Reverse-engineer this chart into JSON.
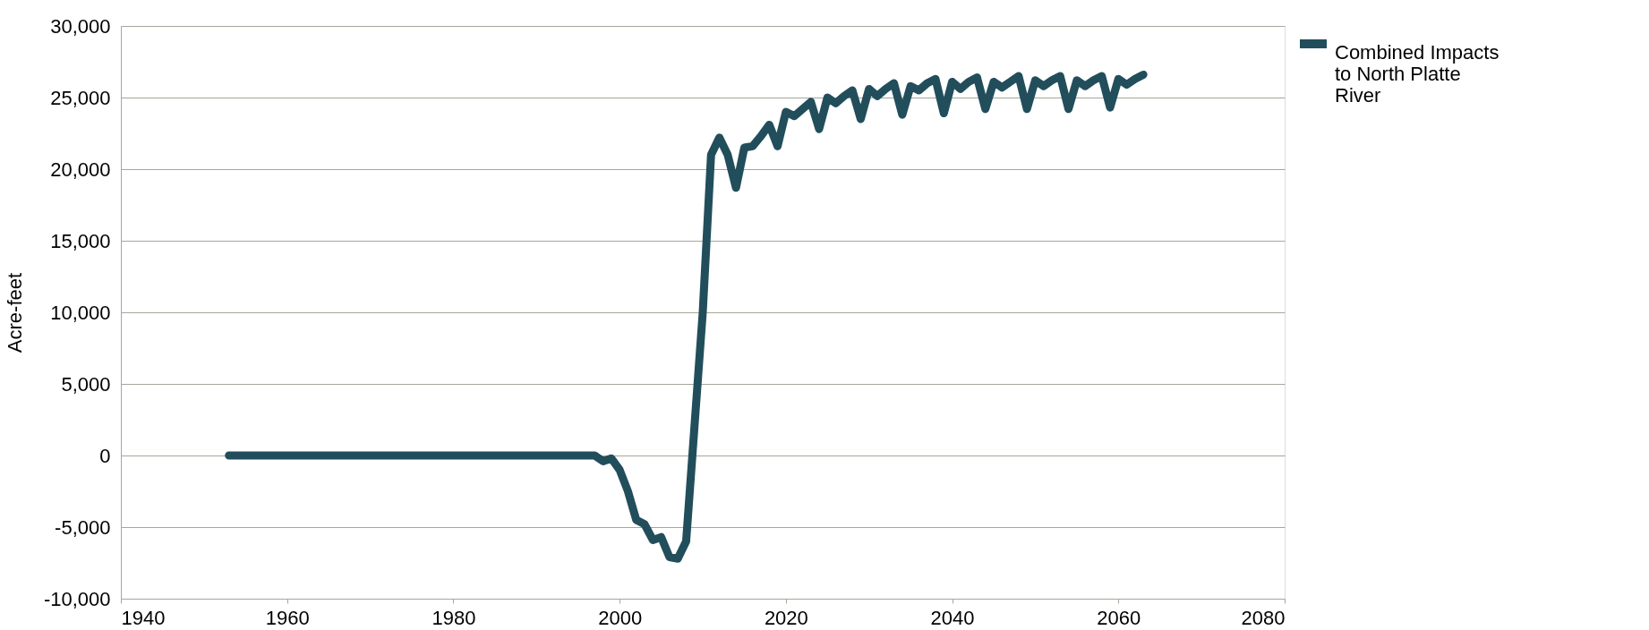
{
  "chart_data": {
    "type": "line",
    "ylabel": "Acre-feet",
    "x": [
      1953,
      1954,
      1955,
      1956,
      1957,
      1958,
      1959,
      1960,
      1961,
      1962,
      1963,
      1964,
      1965,
      1966,
      1967,
      1968,
      1969,
      1970,
      1971,
      1972,
      1973,
      1974,
      1975,
      1976,
      1977,
      1978,
      1979,
      1980,
      1981,
      1982,
      1983,
      1984,
      1985,
      1986,
      1987,
      1988,
      1989,
      1990,
      1991,
      1992,
      1993,
      1994,
      1995,
      1996,
      1997,
      1998,
      1999,
      2000,
      2001,
      2002,
      2003,
      2004,
      2005,
      2006,
      2007,
      2008,
      2009,
      2010,
      2011,
      2012,
      2013,
      2014,
      2015,
      2016,
      2017,
      2018,
      2019,
      2020,
      2021,
      2022,
      2023,
      2024,
      2025,
      2026,
      2027,
      2028,
      2029,
      2030,
      2031,
      2032,
      2033,
      2034,
      2035,
      2036,
      2037,
      2038,
      2039,
      2040,
      2041,
      2042,
      2043,
      2044,
      2045,
      2046,
      2047,
      2048,
      2049,
      2050,
      2051,
      2052,
      2053,
      2054,
      2055,
      2056,
      2057,
      2058,
      2059,
      2060,
      2061,
      2062,
      2063
    ],
    "series": [
      {
        "name": "Combined Impacts to North Platte River",
        "color": "#224e5c",
        "values": [
          0,
          0,
          0,
          0,
          0,
          0,
          0,
          0,
          0,
          0,
          0,
          0,
          0,
          0,
          0,
          0,
          0,
          0,
          0,
          0,
          0,
          0,
          0,
          0,
          0,
          0,
          0,
          0,
          0,
          0,
          0,
          0,
          0,
          0,
          0,
          0,
          0,
          0,
          0,
          0,
          0,
          0,
          0,
          0,
          0,
          -400,
          -200,
          -1000,
          -2500,
          -4500,
          -4800,
          -5900,
          -5700,
          -7100,
          -7200,
          -6000,
          2000,
          10000,
          21000,
          22200,
          21000,
          18700,
          21500,
          21600,
          22300,
          23100,
          21600,
          24000,
          23700,
          24200,
          24700,
          22800,
          25000,
          24600,
          25100,
          25500,
          23500,
          25600,
          25100,
          25600,
          26000,
          23800,
          25800,
          25500,
          26000,
          26300,
          23900,
          26100,
          25600,
          26100,
          26400,
          24200,
          26100,
          25700,
          26100,
          26500,
          24200,
          26200,
          25800,
          26200,
          26500,
          24200,
          26200,
          25800,
          26200,
          26500,
          24300,
          26300,
          25900,
          26300,
          26600
        ]
      }
    ],
    "xlim": [
      1940,
      2080
    ],
    "xticks": [
      1940,
      1960,
      1980,
      2000,
      2020,
      2040,
      2060,
      2080
    ],
    "ylim": [
      -10000,
      30000
    ],
    "yticks": [
      {
        "value": -10000,
        "label": "-10,000"
      },
      {
        "value": -5000,
        "label": "-5,000"
      },
      0,
      {
        "value": 5000,
        "label": "5,000"
      },
      {
        "value": 10000,
        "label": "10,000"
      },
      {
        "value": 15000,
        "label": "15,000"
      },
      {
        "value": 20000,
        "label": "20,000"
      },
      {
        "value": 25000,
        "label": "25,000"
      },
      {
        "value": 30000,
        "label": "30,000"
      }
    ],
    "grid": "y",
    "legend": "right",
    "line_style": "solid"
  }
}
